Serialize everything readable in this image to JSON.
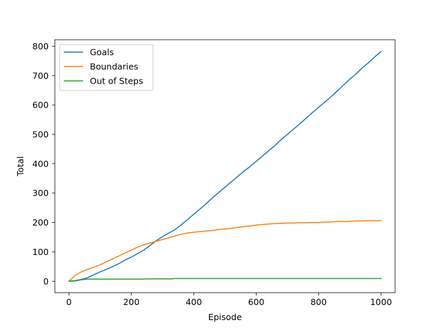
{
  "chart_data": {
    "type": "line",
    "title": "",
    "xlabel": "Episode",
    "ylabel": "Total",
    "xlim": [
      -45,
      1045
    ],
    "ylim": [
      -39,
      822
    ],
    "xticks": [
      0,
      200,
      400,
      600,
      800,
      1000
    ],
    "yticks": [
      0,
      100,
      200,
      300,
      400,
      500,
      600,
      700,
      800
    ],
    "grid": false,
    "legend_position": "top-left",
    "series": [
      {
        "name": "Goals",
        "color": "#1f77b4",
        "x": [
          0,
          20,
          40,
          60,
          80,
          100,
          120,
          140,
          160,
          180,
          200,
          220,
          240,
          260,
          280,
          300,
          320,
          340,
          360,
          380,
          400,
          420,
          440,
          460,
          480,
          500,
          520,
          540,
          560,
          580,
          600,
          620,
          640,
          660,
          680,
          700,
          720,
          740,
          760,
          780,
          800,
          820,
          840,
          860,
          880,
          900,
          920,
          940,
          960,
          980,
          1000
        ],
        "y": [
          0,
          2,
          6,
          12,
          22,
          32,
          40,
          50,
          60,
          72,
          82,
          94,
          106,
          122,
          138,
          152,
          164,
          176,
          192,
          210,
          228,
          246,
          264,
          284,
          302,
          320,
          338,
          356,
          374,
          390,
          408,
          426,
          444,
          462,
          482,
          500,
          518,
          536,
          555,
          574,
          592,
          610,
          628,
          648,
          668,
          688,
          706,
          726,
          744,
          764,
          782
        ]
      },
      {
        "name": "Boundaries",
        "color": "#ff7f0e",
        "x": [
          0,
          20,
          40,
          60,
          80,
          100,
          120,
          140,
          160,
          180,
          200,
          220,
          240,
          260,
          280,
          300,
          320,
          340,
          360,
          380,
          400,
          420,
          440,
          460,
          480,
          500,
          520,
          540,
          560,
          580,
          600,
          620,
          640,
          660,
          680,
          700,
          720,
          740,
          760,
          780,
          800,
          820,
          840,
          860,
          880,
          900,
          920,
          940,
          960,
          980,
          1000
        ],
        "y": [
          0,
          20,
          32,
          40,
          48,
          56,
          66,
          76,
          86,
          96,
          106,
          116,
          124,
          130,
          136,
          142,
          148,
          154,
          160,
          164,
          167,
          169,
          171,
          173,
          176,
          178,
          180,
          183,
          186,
          188,
          191,
          193,
          195,
          196,
          197,
          198,
          198,
          199,
          199,
          200,
          200,
          201,
          202,
          203,
          203,
          204,
          205,
          205,
          206,
          206,
          207
        ]
      },
      {
        "name": "Out of Steps",
        "color": "#2ca02c",
        "x": [
          0,
          10,
          20,
          30,
          40,
          50,
          60,
          80,
          100,
          150,
          200,
          240,
          245,
          330,
          335,
          400,
          500,
          600,
          700,
          800,
          900,
          1000
        ],
        "y": [
          0,
          0,
          1,
          3,
          5,
          6,
          7,
          7,
          7,
          7,
          7,
          7,
          8,
          8,
          9,
          9,
          9,
          9,
          9,
          9,
          9,
          9
        ]
      }
    ]
  }
}
